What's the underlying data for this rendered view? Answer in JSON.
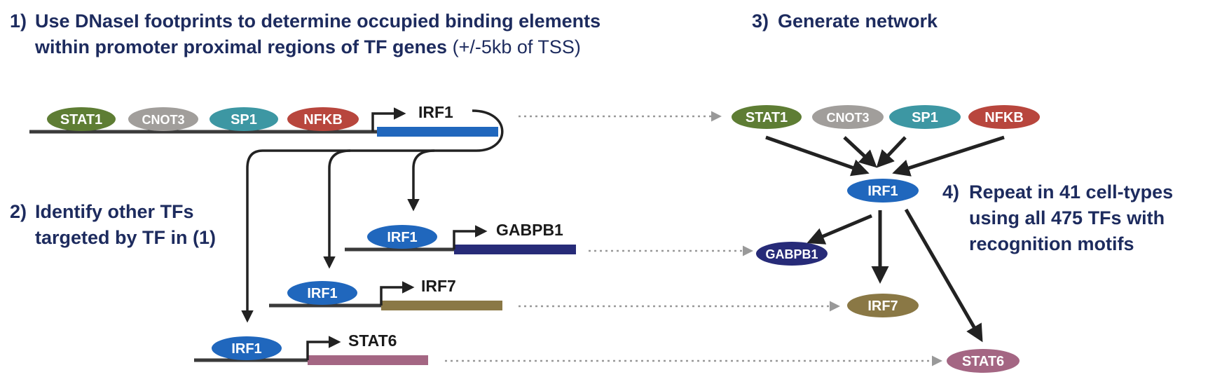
{
  "steps": {
    "step1_num": "1)",
    "step1_line1": "Use DNaseI footprints to determine occupied binding elements",
    "step1_line2": "within promoter proximal regions of TF genes",
    "step1_note": "(+/-5kb of TSS)",
    "step2_num": "2)",
    "step2_line1": "Identify other TFs",
    "step2_line2": "targeted by TF in (1)",
    "step3_num": "3)",
    "step3_line1": "Generate network",
    "step4_num": "4)",
    "step4_line1": "Repeat in 41 cell-types",
    "step4_line2": "using all 475 TFs with",
    "step4_line3": "recognition motifs"
  },
  "tfs": {
    "stat1": "STAT1",
    "cnot3": "CNOT3",
    "sp1": "SP1",
    "nfkb": "NFKB",
    "irf1": "IRF1",
    "gabpb1": "GABPB1",
    "irf7": "IRF7",
    "stat6": "STAT6"
  },
  "genes": {
    "irf1": "IRF1",
    "gabpb1": "GABPB1",
    "irf7": "IRF7",
    "stat6": "STAT6"
  },
  "colors": {
    "stat1": "#5e7d34",
    "cnot3": "#a19e9b",
    "sp1": "#3d97a3",
    "nfkb": "#b8463d",
    "irf1": "#2067bd",
    "gabpb1": "#272b78",
    "irf7": "#8a7845",
    "stat6": "#a46683",
    "heading": "#1d2b5e"
  }
}
